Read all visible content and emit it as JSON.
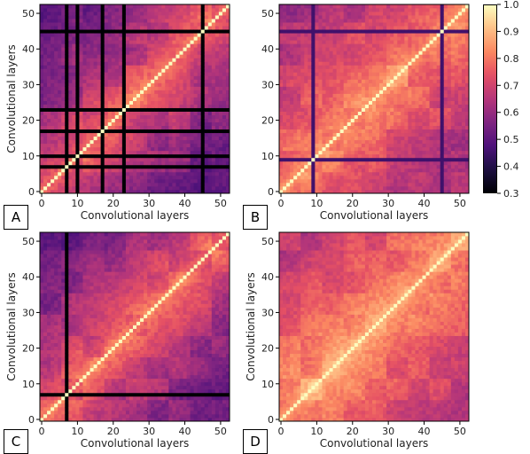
{
  "chart_data": [
    {
      "panel": "A",
      "type": "heatmap",
      "xlabel": "Convolutional layers",
      "ylabel": "Convolutional layers",
      "xticks": [
        0,
        10,
        20,
        30,
        40,
        50
      ],
      "yticks": [
        0,
        10,
        20,
        30,
        40,
        50
      ],
      "xlim": [
        0,
        53
      ],
      "ylim": [
        0,
        53
      ],
      "colormap": "magma",
      "value_range": [
        0.3,
        1.0
      ],
      "features": {
        "diagonal_value": 1.0,
        "low_similarity_layers": [
          7,
          10,
          17,
          23,
          45
        ],
        "low_similarity_value": 0.3,
        "near_diagonal_value": 0.85,
        "far_value": 0.48
      }
    },
    {
      "panel": "B",
      "type": "heatmap",
      "xlabel": "Convolutional layers",
      "ylabel": "",
      "xticks": [
        0,
        10,
        20,
        30,
        40,
        50
      ],
      "yticks": [
        0,
        10,
        20,
        30,
        40,
        50
      ],
      "xlim": [
        0,
        53
      ],
      "ylim": [
        0,
        53
      ],
      "colormap": "magma",
      "value_range": [
        0.3,
        1.0
      ],
      "features": {
        "diagonal_value": 1.0,
        "low_similarity_layers": [
          9,
          45
        ],
        "low_similarity_value": 0.45,
        "near_diagonal_value": 0.9,
        "far_value": 0.6
      }
    },
    {
      "panel": "C",
      "type": "heatmap",
      "xlabel": "Convolutional layers",
      "ylabel": "Convolutional layers",
      "xticks": [
        0,
        10,
        20,
        30,
        40,
        50
      ],
      "yticks": [
        0,
        10,
        20,
        30,
        40,
        50
      ],
      "xlim": [
        0,
        53
      ],
      "ylim": [
        0,
        53
      ],
      "colormap": "magma",
      "value_range": [
        0.3,
        1.0
      ],
      "features": {
        "diagonal_value": 1.0,
        "low_similarity_layers": [
          7
        ],
        "low_similarity_value": 0.3,
        "near_diagonal_value": 0.85,
        "far_value": 0.5
      }
    },
    {
      "panel": "D",
      "type": "heatmap",
      "xlabel": "Convolutional layers",
      "ylabel": "Convolutional layers",
      "xticks": [
        0,
        10,
        20,
        30,
        40,
        50
      ],
      "yticks": [
        0,
        10,
        20,
        30,
        40,
        50
      ],
      "xlim": [
        0,
        53
      ],
      "ylim": [
        0,
        53
      ],
      "colormap": "magma",
      "value_range": [
        0.3,
        1.0
      ],
      "features": {
        "diagonal_value": 1.0,
        "low_similarity_layers": [],
        "low_similarity_value": 0.5,
        "near_diagonal_value": 0.92,
        "far_value": 0.65
      }
    }
  ],
  "colorbar": {
    "min": 0.3,
    "max": 1.0,
    "ticks": [
      "1.0",
      "0.9",
      "0.8",
      "0.7",
      "0.6",
      "0.5",
      "0.4",
      "0.3"
    ]
  },
  "panel_letters": [
    "A",
    "B",
    "C",
    "D"
  ]
}
